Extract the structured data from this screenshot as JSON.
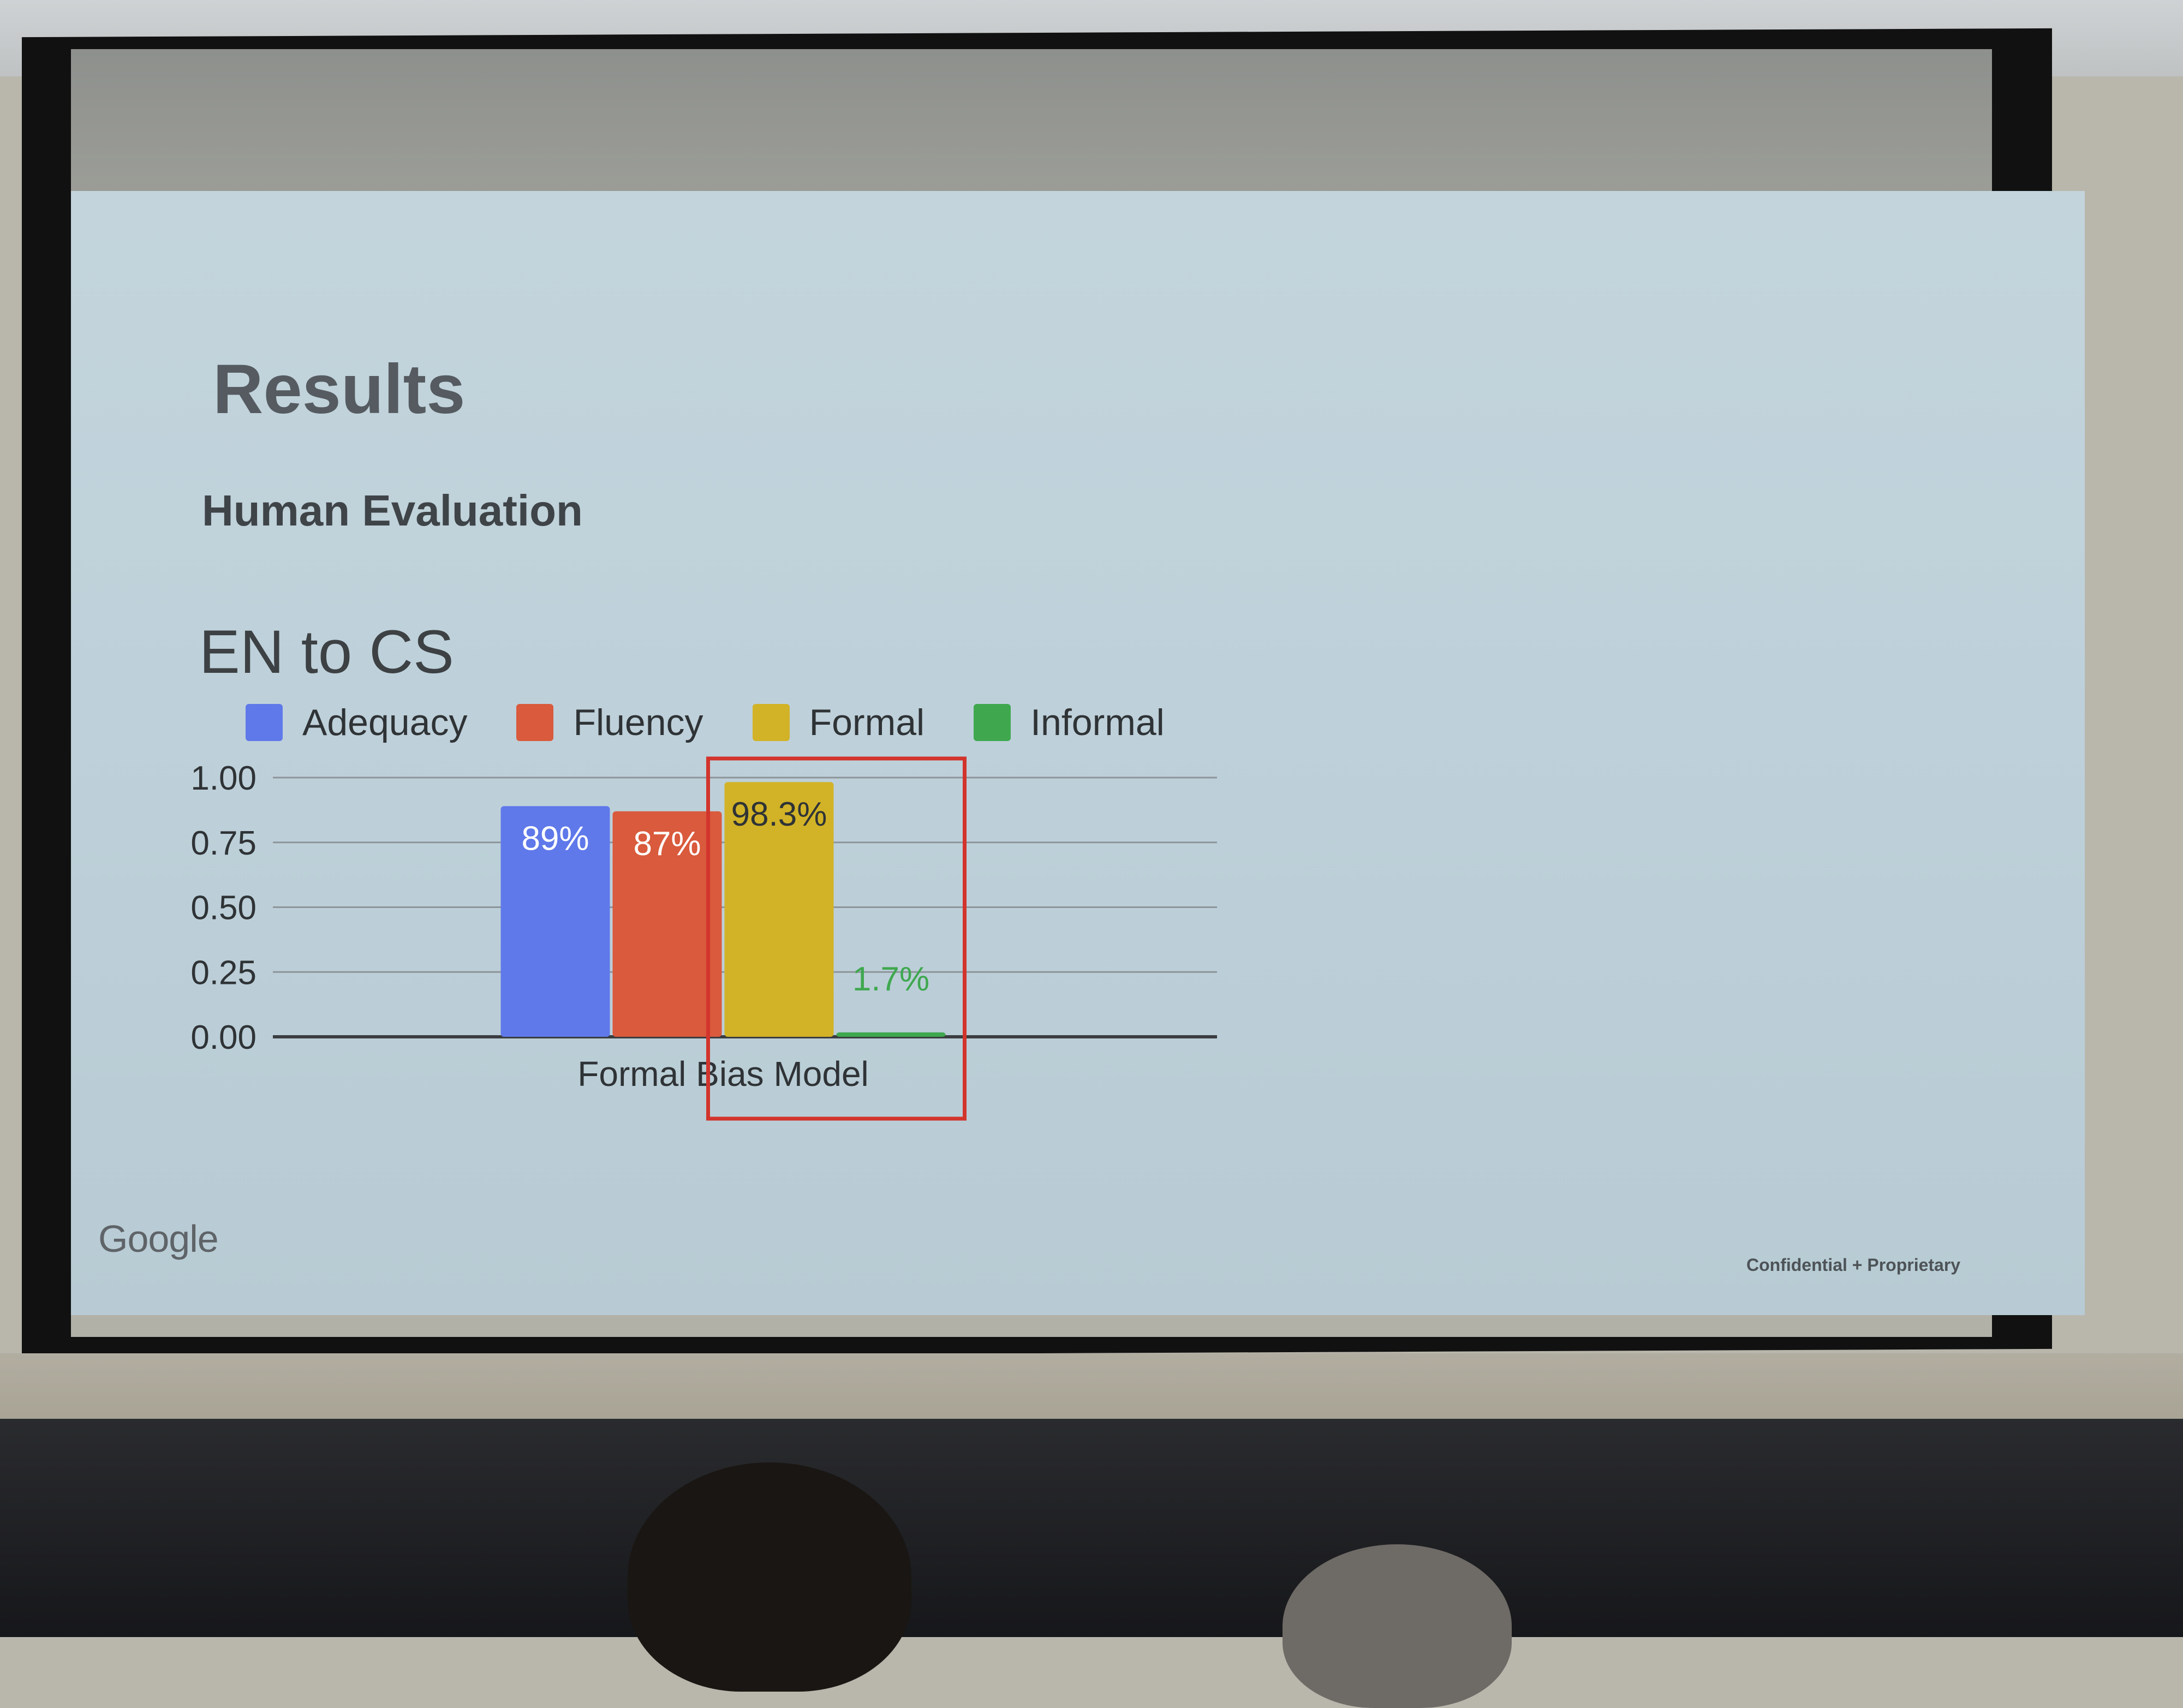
{
  "slide": {
    "title": "Results",
    "subtitle": "Human Evaluation",
    "brand": "Google",
    "footer": "Confidential + Proprietary"
  },
  "chart_data": {
    "type": "bar",
    "title": "EN to CS",
    "categories": [
      "Formal Bias Model"
    ],
    "series": [
      {
        "name": "Adequacy",
        "values": [
          0.89
        ],
        "label": "89%",
        "color": "#5f79ea"
      },
      {
        "name": "Fluency",
        "values": [
          0.87
        ],
        "label": "87%",
        "color": "#d95a3c"
      },
      {
        "name": "Formal",
        "values": [
          0.983
        ],
        "label": "98.3%",
        "color": "#d2b327"
      },
      {
        "name": "Informal",
        "values": [
          0.017
        ],
        "label": "1.7%",
        "color": "#3fa84f"
      }
    ],
    "yticks": [
      "0.00",
      "0.25",
      "0.50",
      "0.75",
      "1.00"
    ],
    "ylim": [
      0,
      1
    ],
    "grid": true,
    "legend": "top",
    "highlight": {
      "series": [
        "Formal",
        "Informal"
      ],
      "color": "#d2342c"
    }
  }
}
